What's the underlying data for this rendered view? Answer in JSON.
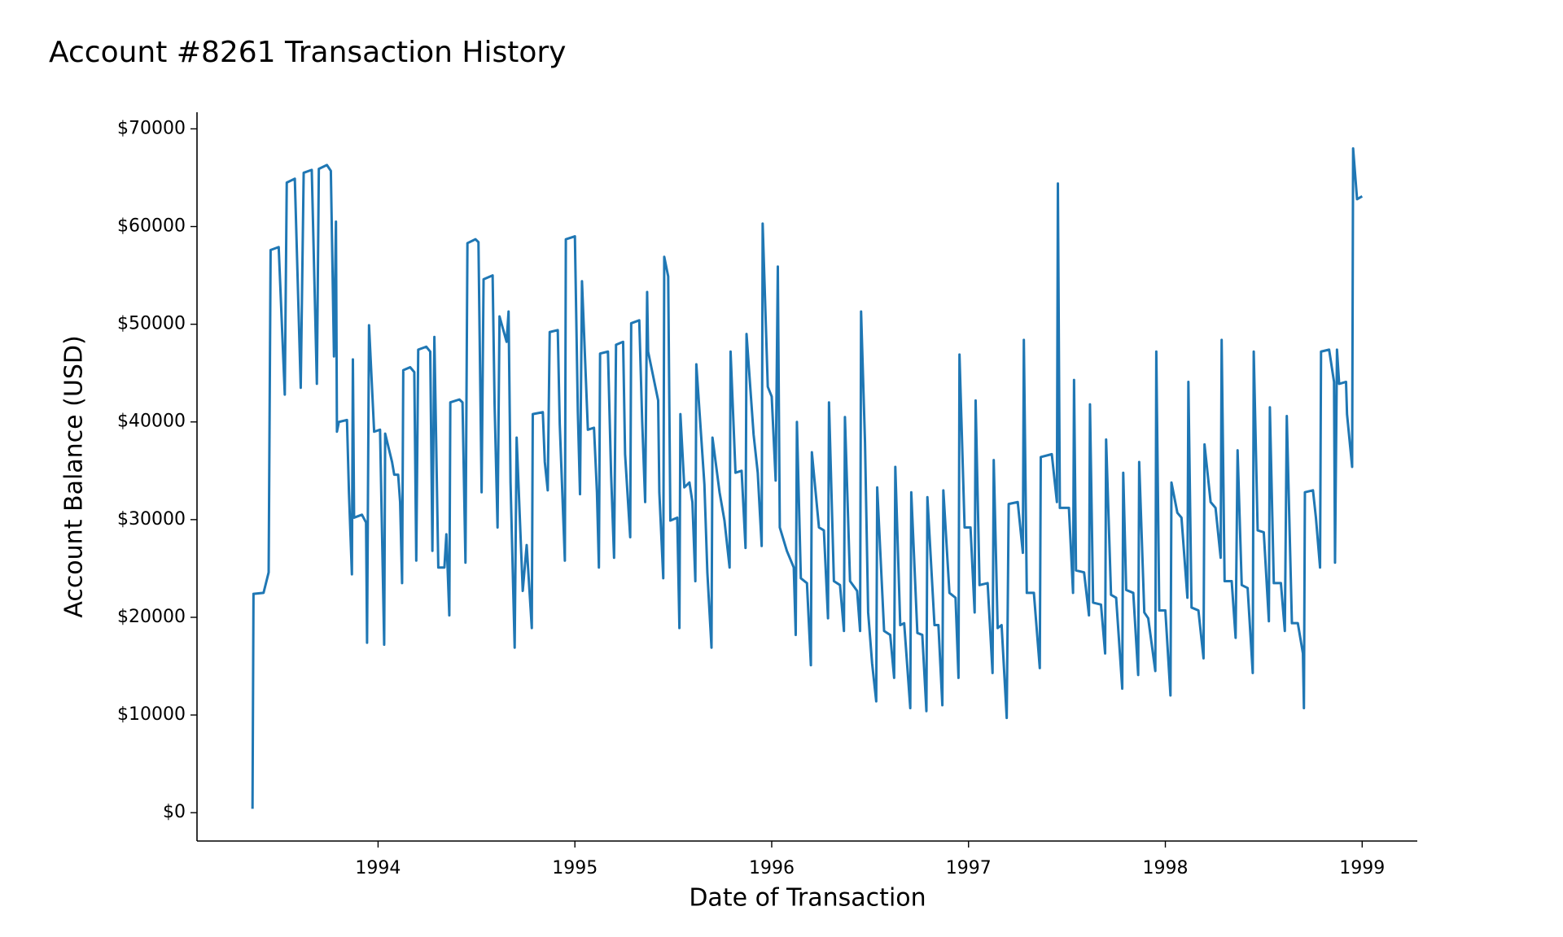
{
  "chart_data": {
    "type": "line",
    "title": "Account #8261 Transaction History",
    "xlabel": "Date of Transaction",
    "ylabel": "Account Balance (USD)",
    "color": "#1f77b4",
    "xlim": [
      1993.08,
      1999.28
    ],
    "xticks": [
      1994,
      1995,
      1996,
      1997,
      1998,
      1999
    ],
    "ylim": [
      -2900,
      71700
    ],
    "yticks": [
      {
        "value": 0,
        "label": "$0"
      },
      {
        "value": 10000,
        "label": "$10000"
      },
      {
        "value": 20000,
        "label": "$20000"
      },
      {
        "value": 30000,
        "label": "$30000"
      },
      {
        "value": 40000,
        "label": "$40000"
      },
      {
        "value": 50000,
        "label": "$50000"
      },
      {
        "value": 60000,
        "label": "$60000"
      },
      {
        "value": 70000,
        "label": "$70000"
      }
    ],
    "x": [
      1993.362,
      1993.367,
      1993.418,
      1993.444,
      1993.454,
      1993.495,
      1993.526,
      1993.536,
      1993.577,
      1993.607,
      1993.622,
      1993.663,
      1993.689,
      1993.699,
      1993.74,
      1993.76,
      1993.776,
      1993.786,
      1993.791,
      1993.801,
      1993.842,
      1993.852,
      1993.867,
      1993.872,
      1993.878,
      1993.918,
      1993.939,
      1993.944,
      1993.954,
      1993.98,
      1994.01,
      1994.031,
      1994.036,
      1994.071,
      1994.082,
      1994.102,
      1994.112,
      1994.122,
      1994.128,
      1994.163,
      1994.184,
      1994.194,
      1994.204,
      1994.245,
      1994.265,
      1994.276,
      1994.286,
      1994.306,
      1994.337,
      1994.347,
      1994.362,
      1994.367,
      1994.413,
      1994.429,
      1994.444,
      1994.454,
      1994.495,
      1994.51,
      1994.526,
      1994.536,
      1994.582,
      1994.592,
      1994.607,
      1994.617,
      1994.653,
      1994.663,
      1994.673,
      1994.694,
      1994.704,
      1994.735,
      1994.755,
      1994.781,
      1994.786,
      1994.837,
      1994.847,
      1994.862,
      1994.872,
      1994.913,
      1994.923,
      1994.949,
      1994.954,
      1995.0,
      1995.015,
      1995.026,
      1995.036,
      1995.066,
      1995.097,
      1995.112,
      1995.122,
      1995.128,
      1995.168,
      1995.184,
      1995.199,
      1995.209,
      1995.245,
      1995.255,
      1995.281,
      1995.286,
      1995.327,
      1995.342,
      1995.357,
      1995.367,
      1995.372,
      1995.423,
      1995.429,
      1995.449,
      1995.454,
      1995.474,
      1995.485,
      1995.52,
      1995.531,
      1995.536,
      1995.556,
      1995.582,
      1995.597,
      1995.612,
      1995.617,
      1995.658,
      1995.673,
      1995.694,
      1995.699,
      1995.735,
      1995.76,
      1995.786,
      1995.791,
      1995.816,
      1995.847,
      1995.867,
      1995.872,
      1995.908,
      1995.929,
      1995.949,
      1995.954,
      1995.98,
      1996.0,
      1996.02,
      1996.031,
      1996.041,
      1996.077,
      1996.112,
      1996.122,
      1996.128,
      1996.148,
      1996.179,
      1996.199,
      1996.204,
      1996.24,
      1996.265,
      1996.286,
      1996.291,
      1996.316,
      1996.347,
      1996.367,
      1996.372,
      1996.398,
      1996.434,
      1996.449,
      1996.454,
      1996.474,
      1996.49,
      1996.51,
      1996.531,
      1996.536,
      1996.571,
      1996.602,
      1996.622,
      1996.628,
      1996.653,
      1996.673,
      1996.704,
      1996.709,
      1996.74,
      1996.765,
      1996.786,
      1996.791,
      1996.827,
      1996.847,
      1996.867,
      1996.872,
      1996.903,
      1996.934,
      1996.949,
      1996.954,
      1996.98,
      1997.01,
      1997.031,
      1997.036,
      1997.056,
      1997.097,
      1997.122,
      1997.128,
      1997.148,
      1997.168,
      1997.194,
      1997.204,
      1997.25,
      1997.276,
      1997.281,
      1997.296,
      1997.332,
      1997.362,
      1997.367,
      1997.423,
      1997.449,
      1997.454,
      1997.464,
      1997.51,
      1997.531,
      1997.536,
      1997.546,
      1997.587,
      1997.612,
      1997.617,
      1997.633,
      1997.673,
      1997.694,
      1997.699,
      1997.724,
      1997.75,
      1997.781,
      1997.786,
      1997.801,
      1997.837,
      1997.862,
      1997.867,
      1997.893,
      1997.913,
      1997.949,
      1997.954,
      1997.969,
      1998.0,
      1998.026,
      1998.031,
      1998.061,
      1998.082,
      1998.112,
      1998.117,
      1998.133,
      1998.168,
      1998.194,
      1998.199,
      1998.23,
      1998.255,
      1998.281,
      1998.286,
      1998.301,
      1998.337,
      1998.357,
      1998.367,
      1998.388,
      1998.418,
      1998.444,
      1998.449,
      1998.469,
      1998.5,
      1998.526,
      1998.531,
      1998.551,
      1998.587,
      1998.607,
      1998.617,
      1998.643,
      1998.673,
      1998.699,
      1998.704,
      1998.709,
      1998.75,
      1998.765,
      1998.786,
      1998.791,
      1998.832,
      1998.857,
      1998.862,
      1998.872,
      1998.883,
      1998.918,
      1998.923,
      1998.949,
      1998.954,
      1998.974,
      1999.0
    ],
    "values": [
      400,
      22400,
      22500,
      24600,
      57600,
      57900,
      42800,
      64500,
      64900,
      43500,
      65500,
      65800,
      43900,
      65900,
      66300,
      65700,
      46700,
      60500,
      39000,
      40000,
      40200,
      32800,
      24400,
      46400,
      30200,
      30500,
      29700,
      17400,
      49900,
      39000,
      39200,
      17200,
      38800,
      35900,
      34600,
      34600,
      31800,
      23500,
      45300,
      45600,
      45100,
      25800,
      47400,
      47700,
      47200,
      26800,
      48700,
      25100,
      25100,
      28500,
      20200,
      42000,
      42300,
      42000,
      25600,
      58300,
      58700,
      58400,
      32800,
      54600,
      55000,
      41800,
      29200,
      50800,
      48200,
      51300,
      33800,
      16900,
      38400,
      22700,
      27400,
      18900,
      40800,
      41000,
      35900,
      33000,
      49200,
      49400,
      39800,
      25800,
      58700,
      59000,
      41000,
      32600,
      54400,
      39200,
      39400,
      32800,
      25100,
      47000,
      47200,
      34600,
      26100,
      47900,
      48200,
      36700,
      28200,
      50100,
      50400,
      40000,
      31800,
      53300,
      47200,
      42200,
      32800,
      24000,
      56900,
      54900,
      29900,
      30200,
      18900,
      40800,
      33300,
      33800,
      31800,
      23700,
      45900,
      33600,
      24600,
      16900,
      38400,
      32800,
      29900,
      25100,
      47200,
      34800,
      35000,
      27100,
      49000,
      38700,
      34800,
      27300,
      60300,
      43600,
      42600,
      34000,
      55900,
      29200,
      26800,
      25100,
      18200,
      40000,
      24000,
      23500,
      15100,
      36900,
      29200,
      28900,
      19900,
      42000,
      23700,
      23300,
      18600,
      40500,
      23700,
      22700,
      18600,
      51300,
      37900,
      20500,
      15300,
      11400,
      33300,
      18600,
      18200,
      13800,
      35400,
      19200,
      19400,
      10700,
      32800,
      18400,
      18200,
      10400,
      32300,
      19200,
      19200,
      11000,
      33000,
      22500,
      22000,
      13800,
      46900,
      29200,
      29200,
      20500,
      42200,
      23300,
      23500,
      14300,
      36100,
      18900,
      19200,
      9700,
      31600,
      31800,
      26600,
      48400,
      22500,
      22500,
      14800,
      36400,
      36700,
      31800,
      64400,
      31200,
      31200,
      22500,
      44300,
      24800,
      24600,
      20200,
      41800,
      21500,
      21300,
      16300,
      38200,
      22300,
      22000,
      12700,
      34800,
      22800,
      22500,
      14100,
      35900,
      20500,
      19900,
      14500,
      47200,
      20700,
      20700,
      12000,
      33800,
      30700,
      30200,
      22000,
      44100,
      21000,
      20700,
      15800,
      37700,
      31800,
      31200,
      26100,
      48400,
      23700,
      23700,
      17900,
      37100,
      23300,
      23000,
      14300,
      47200,
      28900,
      28700,
      19600,
      41500,
      23500,
      23500,
      18600,
      40600,
      19400,
      19400,
      16300,
      10700,
      32800,
      33000,
      30200,
      25100,
      47200,
      47400,
      44100,
      25600,
      47400,
      43900,
      44100,
      40800,
      35400,
      68000,
      62800,
      63100
    ]
  }
}
